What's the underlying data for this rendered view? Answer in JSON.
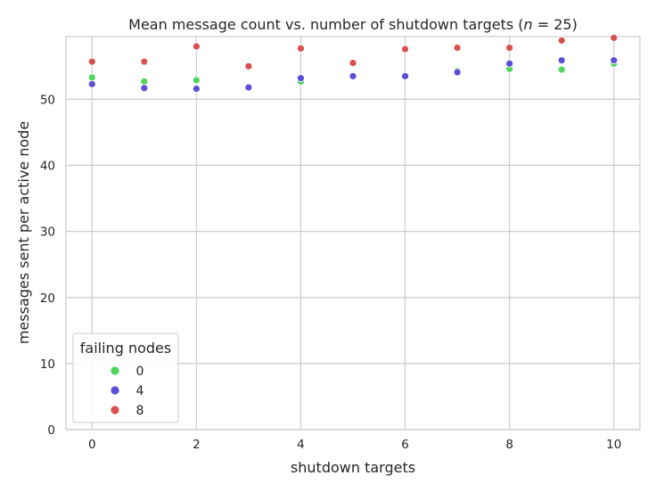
{
  "chart_data": {
    "type": "scatter",
    "title": "Mean message count vs. number of shutdown targets (n = 25)",
    "title_parts": {
      "prefix": "Mean message count vs. number of shutdown targets (",
      "var": "n",
      "suffix": " = 25)"
    },
    "xlabel": "shutdown targets",
    "ylabel": "messages sent per active node",
    "xlim": [
      -0.5,
      10.5
    ],
    "ylim": [
      0,
      59.5
    ],
    "xticks": [
      0,
      2,
      4,
      6,
      8,
      10
    ],
    "yticks": [
      0,
      10,
      20,
      30,
      40,
      50
    ],
    "grid": true,
    "legend": {
      "title": "failing nodes",
      "placement": "lower-left"
    },
    "series": [
      {
        "name": "0",
        "color": "#4fd65a",
        "points": [
          [
            0,
            53.3
          ],
          [
            1,
            52.7
          ],
          [
            2,
            52.9
          ],
          [
            4,
            52.7
          ],
          [
            7,
            54.3
          ],
          [
            8,
            54.6
          ],
          [
            9,
            54.5
          ],
          [
            10,
            55.4
          ]
        ]
      },
      {
        "name": "4",
        "color": "#5b4fd9",
        "points": [
          [
            0,
            52.3
          ],
          [
            1,
            51.7
          ],
          [
            2,
            51.6
          ],
          [
            3,
            51.8
          ],
          [
            4,
            53.2
          ],
          [
            5,
            53.5
          ],
          [
            6,
            53.5
          ],
          [
            7,
            54.1
          ],
          [
            8,
            55.4
          ],
          [
            9,
            55.9
          ],
          [
            10,
            55.9
          ]
        ]
      },
      {
        "name": "8",
        "color": "#d9504f",
        "points": [
          [
            0,
            55.7
          ],
          [
            1,
            55.7
          ],
          [
            2,
            58.0
          ],
          [
            3,
            55.0
          ],
          [
            4,
            57.7
          ],
          [
            5,
            55.5
          ],
          [
            6,
            57.6
          ],
          [
            7,
            57.8
          ],
          [
            8,
            57.8
          ],
          [
            9,
            58.9
          ],
          [
            10,
            59.3
          ]
        ]
      }
    ]
  }
}
